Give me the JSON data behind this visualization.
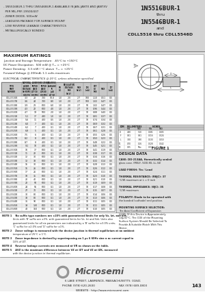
{
  "bg_header": "#d4d4d4",
  "bg_right_panel": "#e0e0e0",
  "bg_white": "#ffffff",
  "bg_table_header": "#c8c8c8",
  "bg_table_alt": "#ebebeb",
  "bg_footer": "#f0f0f0",
  "text_dark": "#222222",
  "text_gray": "#555555",
  "line_color": "#888888",
  "bullet1": "- 1N5516BUR-1 THRU 1N5546BUR-1 AVAILABLE IN JAN, JANTX AND JANTXV",
  "bullet1b": "  PER MIL-PRF-19500/437",
  "bullet2": "- ZENER DIODE, 500mW",
  "bullet3": "- LEADLESS PACKAGE FOR SURFACE MOUNT",
  "bullet4": "- LOW REVERSE LEAKAGE CHARACTERISTICS",
  "bullet5": "- METALLURGICALLY BONDED",
  "title_line1": "1N5516BUR-1",
  "title_line2": "thru",
  "title_line3": "1N5546BUR-1",
  "title_line4": "and",
  "title_line5": "CDLL5516 thru CDLL5546D",
  "max_ratings_title": "MAXIMUM RATINGS",
  "mr1": "Junction and Storage Temperature:  -65°C to +150°C",
  "mr2": "DC Power Dissipation:  500 mW @ T₁₂ = +25°C",
  "mr3": "Power Derating:  3.3 mW / °C above  T₁₂ = +25°C",
  "mr4": "Forward Voltage @ 200mA: 1.1 volts maximum",
  "elec_title": "ELECTRICAL CHARACTERISTICS @ 25°C, unless otherwise specified.",
  "col_headers_row1": [
    "TYPE",
    "NOMINAL",
    "ZENER",
    "MAX ZENER",
    "REVERSE LEAKAGE",
    "D.C.ZZ",
    "REGULATOR",
    "LEAKAGE",
    "ZENER"
  ],
  "col_headers_row2": [
    "PART",
    "ZENER",
    "IMPED-",
    "IMPEDANCE",
    "CURRENT",
    "IMPEDANCE",
    "VOLTAGE",
    "CURRENT",
    "CURRENT"
  ],
  "col_headers_row3": [
    "NUMBER",
    "VOLTAGE",
    "ANCE",
    "AT 1.0 mA",
    "",
    "AT IZT",
    "",
    "AT VR(MAX)",
    "IZT"
  ],
  "col_headers_row4": [
    "",
    "VZ (NOM)",
    "ZZT(Ω)",
    "ZZK(Ω)",
    "IR(μA)  VR(V)",
    "ZZT(Ω)",
    "VZ(V)",
    "IR(μA)",
    "mA"
  ],
  "col_headers_row5": [
    "(NOTE 1)",
    "(VOLTS)",
    "(OHMS) A",
    "(OHMS) A",
    "AT VR  AT VR",
    "(OHMS) A",
    "MIN  MAX",
    "",
    ""
  ],
  "table_rows": [
    [
      "CDLL5516B",
      "3.3",
      "28",
      "700",
      "10.0",
      "1.0",
      "2.0",
      "2.7",
      "100",
      "1.10",
      "0.51",
      "0.5"
    ],
    [
      "CDLL5517B",
      "3.6",
      "24",
      "700",
      "8.0",
      "1.0",
      "2.0",
      "2.7",
      "100",
      "1.02",
      "0.47",
      "0.5"
    ],
    [
      "CDLL5518B",
      "3.9",
      "23",
      "600",
      "6.0",
      "1.0",
      "2.0",
      "2.7",
      "50",
      "1.02",
      "0.47",
      "0.5"
    ],
    [
      "CDLL5519B",
      "4.3",
      "22",
      "600",
      "4.0",
      "1.0",
      "2.0",
      "2.7",
      "10",
      "0.96",
      "0.44",
      "0.5"
    ],
    [
      "CDLL5520B",
      "4.7",
      "19",
      "500",
      "2.0",
      "1.0",
      "2.0",
      "2.7",
      "10",
      "0.88",
      "0.40",
      "0.5"
    ],
    [
      "CDLL5521B",
      "5.1",
      "17",
      "480",
      "1.0",
      "1.0",
      "2.0",
      "2.7",
      "10",
      "0.81",
      "0.37",
      "0.5"
    ],
    [
      "CDLL5522B",
      "5.6",
      "11",
      "400",
      "0.5",
      "1.0",
      "2.0",
      "2.7",
      "10",
      "0.74",
      "0.34",
      "0.5"
    ],
    [
      "CDLL5523B",
      "6.0",
      "7",
      "400",
      "0.1",
      "1.0",
      "2.0",
      "2.7",
      "10",
      "0.69",
      "0.32",
      "0.5"
    ],
    [
      "CDLL5524B",
      "6.2",
      "7",
      "400",
      "0.1",
      "1.0",
      "2.0",
      "2.7",
      "10",
      "0.67",
      "0.31",
      "0.5"
    ],
    [
      "CDLL5525B",
      "6.8",
      "5",
      "400",
      "0.1",
      "1.0",
      "2.0",
      "2.7",
      "10",
      "0.61",
      "0.28",
      "0.5"
    ],
    [
      "CDLL5526B",
      "7.5",
      "6",
      "400",
      "0.1",
      "1.0",
      "2.0",
      "2.7",
      "10",
      "0.55",
      "0.26",
      "0.5"
    ],
    [
      "CDLL5527B",
      "8.2",
      "8",
      "400",
      "0.1",
      "1.0",
      "2.0",
      "2.7",
      "10",
      "0.50",
      "0.23",
      "0.5"
    ],
    [
      "CDLL5528B",
      "8.7",
      "8",
      "400",
      "0.1",
      "1.0",
      "2.0",
      "2.7",
      "10",
      "0.48",
      "0.22",
      "0.5"
    ],
    [
      "CDLL5529B",
      "9.1",
      "10",
      "400",
      "0.1",
      "1.0",
      "2.0",
      "2.7",
      "10",
      "0.45",
      "0.21",
      "0.5"
    ],
    [
      "CDLL5530B",
      "10",
      "17",
      "600",
      "0.1",
      "1.0",
      "2.0",
      "2.7",
      "10",
      "0.41",
      "0.19",
      "0.5"
    ],
    [
      "CDLL5531B",
      "11",
      "22",
      "600",
      "0.1",
      "1.0",
      "2.0",
      "2.7",
      "10",
      "0.38",
      "0.17",
      "0.5"
    ],
    [
      "CDLL5532B",
      "12",
      "30",
      "600",
      "0.1",
      "1.0",
      "2.0",
      "2.7",
      "10",
      "0.34",
      "0.16",
      "0.5"
    ],
    [
      "CDLL5533B",
      "13",
      "33",
      "600",
      "0.1",
      "1.0",
      "2.0",
      "2.7",
      "10",
      "0.32",
      "0.14",
      "0.5"
    ],
    [
      "CDLL5534B",
      "15",
      "30",
      "600",
      "0.1",
      "1.0",
      "2.0",
      "2.7",
      "10",
      "0.28",
      "0.13",
      "0.5"
    ],
    [
      "CDLL5535B",
      "16",
      "26",
      "600",
      "0.1",
      "1.0",
      "2.0",
      "2.7",
      "10",
      "0.26",
      "0.12",
      "0.5"
    ],
    [
      "CDLL5536B",
      "17",
      "26",
      "600",
      "0.1",
      "1.0",
      "2.0",
      "2.7",
      "10",
      "0.24",
      "0.11",
      "0.5"
    ],
    [
      "CDLL5537B",
      "18",
      "35",
      "600",
      "0.1",
      "1.0",
      "2.0",
      "2.7",
      "10",
      "0.23",
      "0.10",
      "0.5"
    ],
    [
      "CDLL5538B",
      "20",
      "40",
      "600",
      "0.1",
      "1.0",
      "2.0",
      "2.7",
      "10",
      "0.21",
      "0.10",
      "0.5"
    ],
    [
      "CDLL5539B",
      "22",
      "50",
      "600",
      "0.1",
      "1.0",
      "2.0",
      "2.7",
      "10",
      "0.19",
      "0.09",
      "0.5"
    ],
    [
      "CDLL5540B",
      "24",
      "55",
      "600",
      "0.1",
      "1.0",
      "2.0",
      "2.7",
      "10",
      "0.17",
      "0.08",
      "0.5"
    ],
    [
      "CDLL5541B",
      "27",
      "70",
      "600",
      "0.1",
      "1.0",
      "2.0",
      "2.7",
      "10",
      "0.15",
      "0.07",
      "0.5"
    ],
    [
      "CDLL5542B",
      "30",
      "80",
      "600",
      "0.1",
      "1.0",
      "2.0",
      "2.7",
      "10",
      "0.14",
      "0.06",
      "0.5"
    ],
    [
      "CDLL5543B",
      "33",
      "80",
      "600",
      "0.1",
      "1.0",
      "2.0",
      "2.7",
      "10",
      "0.13",
      "0.06",
      "0.5"
    ],
    [
      "CDLL5544B",
      "36",
      "90",
      "600",
      "0.1",
      "1.0",
      "2.0",
      "2.7",
      "10",
      "0.11",
      "0.05",
      "0.5"
    ],
    [
      "CDLL5545B",
      "39",
      "130",
      "600",
      "0.1",
      "1.0",
      "2.0",
      "2.7",
      "10",
      "0.11",
      "0.05",
      "0.5"
    ],
    [
      "CDLL5546B",
      "43",
      "150",
      "600",
      "0.1",
      "1.0",
      "2.0",
      "2.7",
      "10",
      "0.10",
      "0.05",
      "0.5"
    ]
  ],
  "note1": "NOTE 1    No suffix type numbers are ±20% with guaranteeed limits for only Vz, Izt, and Vzk.",
  "note1b": "              Units with 'B' suffix are ±3%, with guaranteed limits for Vz, Izt and Vzk. Units also",
  "note1c": "              guaranteed limits for all six parameters are indicated by a 'B' suffix for ±3.0% units,",
  "note1d": "              'C' suffix for ±2.0% and 'D' suffix for ±1%.",
  "note2": "NOTE 2    Zener voltage is measured with the device junction in thermal equilibrium at an ambient",
  "note2b": "              temperature of 25°C ± 1°C.",
  "note3": "NOTE 3    Zener impedance is derived by superimposing on 1 μs 6 60Hz sine a ac current equal to",
  "note3b": "              10% of IZT.",
  "note4": "NOTE 4    Reverse leakage currents are measured at VR as shown on the table.",
  "note5": "NOTE 5    ΔVZ is the maximum difference between VZ at IZT and VZ at IZK, measured",
  "note5b": "              with the device junction in thermal equilibrium.",
  "fig_title": "FIGURE 1",
  "design_data_title": "DESIGN DATA",
  "dd_case": "CASE: DO-213AA, Hermetically sealed",
  "dd_case2": "glass case. (MELF, SOD-80, LL-34)",
  "dd_lead": "LEAD FINISH: Tin / Lead",
  "dd_thermal1": "THERMAL RESISTANCE: (RθJC): 37",
  "dd_thermal1b": "°C/W maximum at L = 0 inch",
  "dd_thermal2": "THERMAL IMPEDANCE: (θJC): 35",
  "dd_thermal2b": "°C/W maximum",
  "dd_polarity": "POLARITY: Diode to be operated with",
  "dd_polarity2": "the banded (cathode) end positive.",
  "dd_mount": "MOUNTING SURFACE SELECTION:",
  "dd_mount2": "The Axial Coefficient of Expansion",
  "dd_mount3": "(COE) Of this Device is Approximately",
  "dd_mount4": "±4μm/°C. The COE of the Mounting",
  "dd_mount5": "Surface System Should Be Selected To",
  "dd_mount6": "Provide A Suitable Match With This",
  "dd_mount7": "Device.",
  "footer_addr": "6 LAKE STREET, LAWRENCE, MASSACHUSETTS  01841",
  "footer_phone": "PHONE (978) 620-2600",
  "footer_fax": "FAX (978) 689-0803",
  "footer_web": "WEBSITE:  http://www.microsemi.com",
  "page_num": "143"
}
